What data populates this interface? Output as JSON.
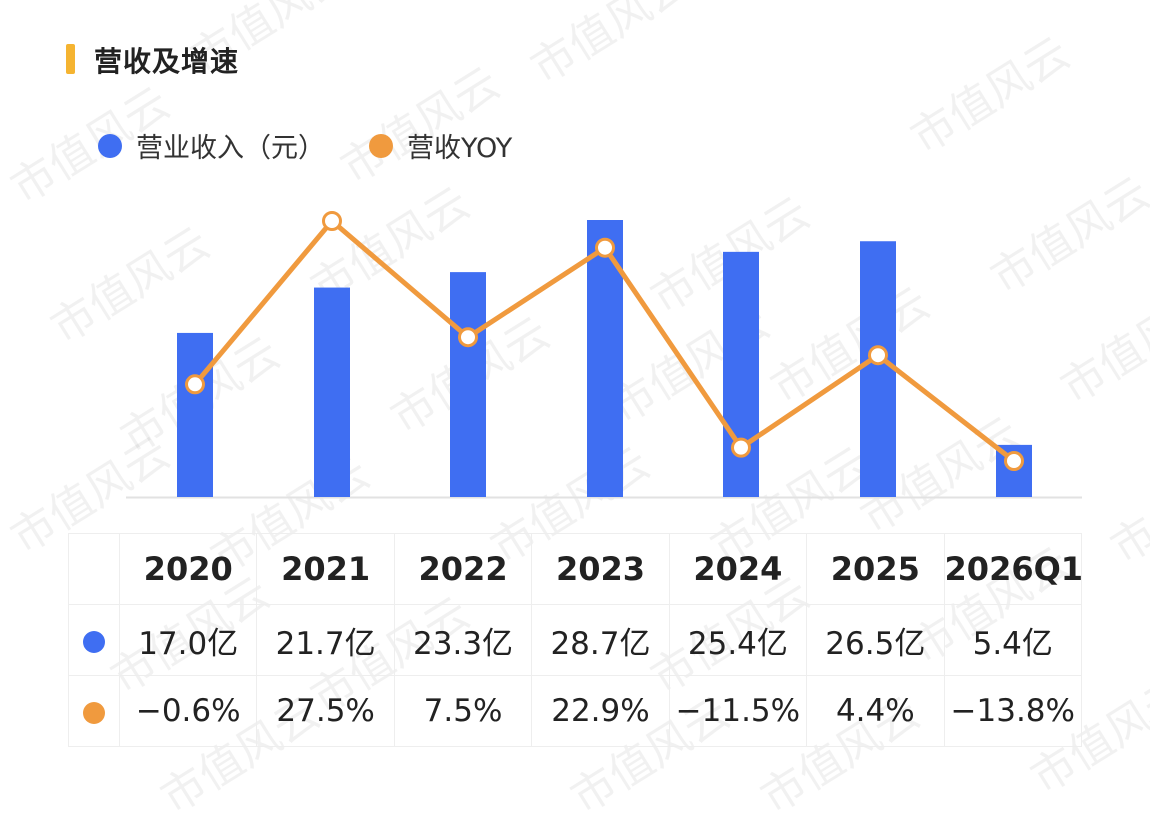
{
  "header": {
    "title": "营收及增速"
  },
  "legend": {
    "revenue": "营业收入（元）",
    "yoy": "营收YOY"
  },
  "colors": {
    "accent": "#F5B431",
    "bar": "#3F6EF2",
    "line": "#F09A3E"
  },
  "watermark": "市值风云",
  "chart_data": {
    "type": "bar",
    "categories": [
      "2020",
      "2021",
      "2022",
      "2023",
      "2024",
      "2025",
      "2026Q1"
    ],
    "series": [
      {
        "name": "营业收入（元）",
        "type": "bar",
        "values": [
          17.0,
          21.7,
          23.3,
          28.7,
          25.4,
          26.5,
          5.4
        ]
      },
      {
        "name": "营收YOY",
        "type": "line",
        "values": [
          -0.6,
          27.5,
          7.5,
          22.9,
          -11.5,
          4.4,
          -13.8
        ]
      }
    ],
    "revenue_labels": [
      "17.0亿",
      "21.7亿",
      "23.3亿",
      "28.7亿",
      "25.4亿",
      "26.5亿",
      "5.4亿"
    ],
    "yoy_labels": [
      "−0.6%",
      "27.5%",
      "7.5%",
      "22.9%",
      "−11.5%",
      "4.4%",
      "−13.8%"
    ],
    "ylim_bar": [
      0,
      28.7
    ],
    "ylim_line": [
      -13.8,
      27.5
    ],
    "grid": false,
    "legend_position": "top-left"
  }
}
